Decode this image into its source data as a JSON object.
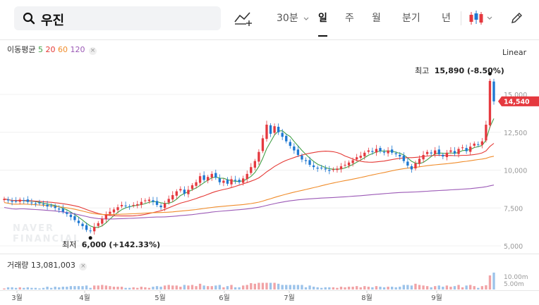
{
  "search": {
    "query": "우진"
  },
  "toolbar": {
    "interval": "30분",
    "periods": [
      "일",
      "주",
      "월",
      "분기",
      "년"
    ],
    "active_period": "일"
  },
  "chart": {
    "ma_label": "이동평균",
    "ma_periods": [
      {
        "label": "5",
        "color": "#43a047"
      },
      {
        "label": "20",
        "color": "#e53935"
      },
      {
        "label": "60",
        "color": "#f08c2a"
      },
      {
        "label": "120",
        "color": "#9b59b6"
      }
    ],
    "scale_mode": "Linear",
    "high_label": "최고",
    "high_value": "15,890 (-8.50%)",
    "low_label": "최저",
    "low_value": "6,000 (+142.33%)",
    "current_price": "14,540",
    "watermark_line1": "NAVER",
    "watermark_line2": "FINANCIAL",
    "volume_label": "거래량",
    "volume_value": "13,081,003",
    "price_ticks": [
      "15,000",
      "12,500",
      "10,000",
      "7,500",
      "5,000"
    ],
    "volume_ticks": [
      "10.00m",
      "5.00m"
    ],
    "months": [
      "3월",
      "4월",
      "5월",
      "6월",
      "7월",
      "8월",
      "9월"
    ],
    "colors": {
      "up": "#e5393f",
      "down": "#1e78d2",
      "price_tag": "#e5393f"
    }
  },
  "chart_data": {
    "type": "candlestick",
    "y_range": [
      5000,
      16000
    ],
    "closes": [
      8100,
      8000,
      7900,
      7950,
      8050,
      8000,
      7900,
      7850,
      7800,
      7800,
      7750,
      7600,
      7650,
      7500,
      7400,
      7250,
      7100,
      6900,
      6700,
      6500,
      6300,
      6050,
      6000,
      6250,
      6500,
      6800,
      7050,
      7250,
      7400,
      7550,
      7700,
      7650,
      7600,
      7700,
      7750,
      7900,
      8000,
      8050,
      7900,
      7700,
      7550,
      7800,
      8100,
      8350,
      8600,
      8750,
      8450,
      8700,
      9000,
      9200,
      9600,
      9350,
      9550,
      9750,
      9500,
      9200,
      9300,
      9100,
      9400,
      9300,
      9200,
      9450,
      9750,
      10200,
      10600,
      11200,
      12100,
      13000,
      12400,
      12900,
      12500,
      12200,
      11900,
      11600,
      11300,
      11000,
      10700,
      10600,
      10350,
      10200,
      10100,
      10150,
      10050,
      9950,
      10050,
      10100,
      10250,
      10350,
      10500,
      10650,
      10850,
      10950,
      11150,
      11300,
      11200,
      11400,
      11250,
      11150,
      11300,
      11150,
      11050,
      10900,
      10600,
      10300,
      10050,
      10450,
      10750,
      11000,
      11200,
      11100,
      11300,
      11050,
      10900,
      11150,
      11300,
      11100,
      11400,
      11500,
      11250,
      11550,
      11750,
      11700,
      11900,
      13000,
      15890,
      14540
    ],
    "ma_windows": [
      5,
      20,
      60,
      120
    ],
    "volume_unit": "shares"
  }
}
